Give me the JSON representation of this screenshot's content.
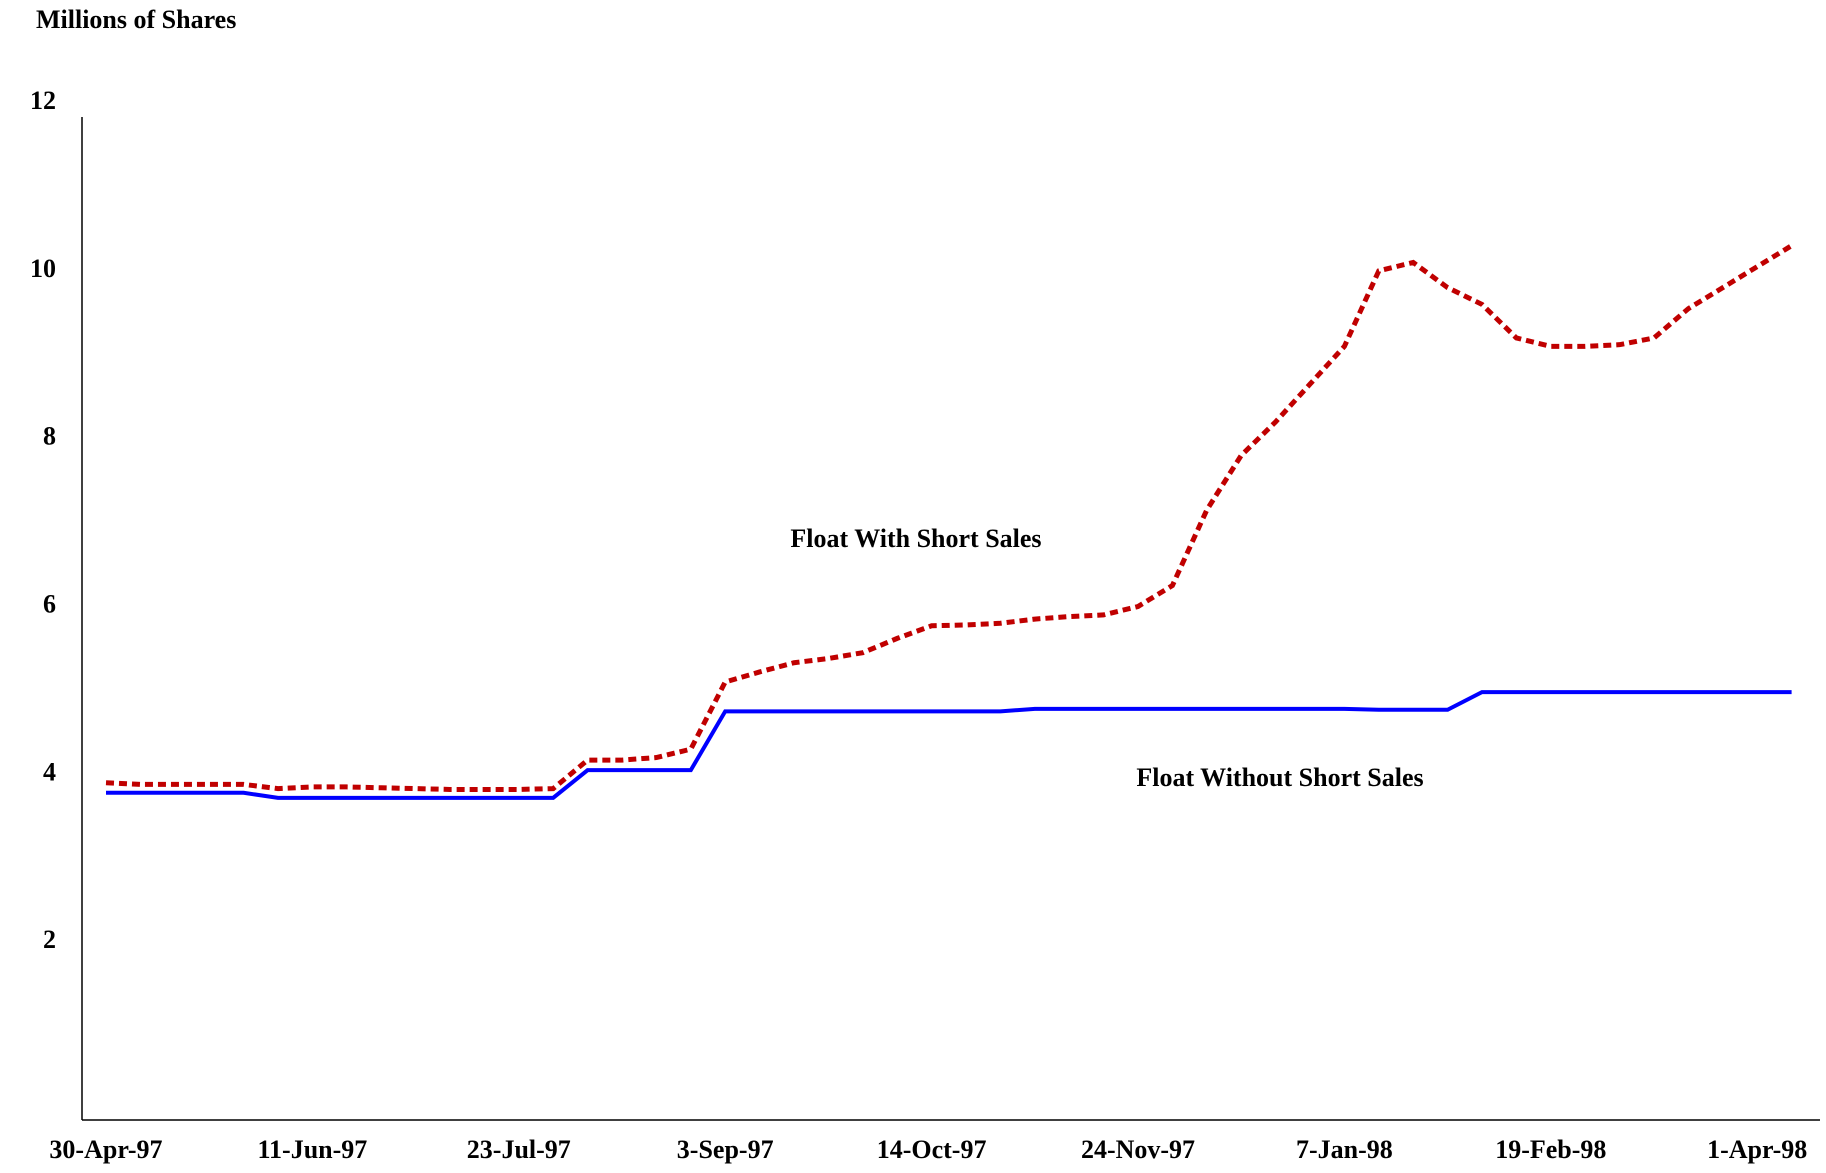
{
  "chart_data": {
    "type": "line",
    "title": "Millions of Shares",
    "categories": [
      "30-Apr-97",
      null,
      null,
      null,
      null,
      null,
      "11-Jun-97",
      null,
      null,
      null,
      null,
      null,
      "23-Jul-97",
      null,
      null,
      null,
      null,
      null,
      "3-Sep-97",
      null,
      null,
      null,
      null,
      null,
      "14-Oct-97",
      null,
      null,
      null,
      null,
      null,
      "24-Nov-97",
      null,
      null,
      null,
      null,
      null,
      "7-Jan-98",
      null,
      null,
      null,
      null,
      null,
      "19-Feb-98",
      null,
      null,
      null,
      null,
      null,
      "1-Apr-98",
      null
    ],
    "series": [
      {
        "name": "Float With Short Sales",
        "color": "#c00000",
        "dash": true,
        "values": [
          3.9,
          3.88,
          3.88,
          3.88,
          3.88,
          3.83,
          3.85,
          3.85,
          3.84,
          3.83,
          3.82,
          3.82,
          3.82,
          3.83,
          4.17,
          4.17,
          4.2,
          4.3,
          5.1,
          5.22,
          5.33,
          5.38,
          5.45,
          5.62,
          5.77,
          5.78,
          5.8,
          5.85,
          5.88,
          5.9,
          6.0,
          6.25,
          7.15,
          7.8,
          8.2,
          8.65,
          9.1,
          10.0,
          10.1,
          9.8,
          9.6,
          9.2,
          9.1,
          9.1,
          9.12,
          9.2,
          9.55,
          9.8,
          10.05,
          10.3
        ]
      },
      {
        "name": "Float Without Short Sales",
        "color": "#0000ff",
        "dash": false,
        "values": [
          3.78,
          3.78,
          3.78,
          3.78,
          3.78,
          3.72,
          3.72,
          3.72,
          3.72,
          3.72,
          3.72,
          3.72,
          3.72,
          3.72,
          4.05,
          4.05,
          4.05,
          4.05,
          4.75,
          4.75,
          4.75,
          4.75,
          4.75,
          4.75,
          4.75,
          4.75,
          4.75,
          4.78,
          4.78,
          4.78,
          4.78,
          4.78,
          4.78,
          4.78,
          4.78,
          4.78,
          4.78,
          4.77,
          4.77,
          4.77,
          4.98,
          4.98,
          4.98,
          4.98,
          4.98,
          4.98,
          4.98,
          4.98,
          4.98,
          4.98
        ]
      }
    ],
    "ylim": [
      0,
      12
    ],
    "yticks": [
      2,
      4,
      6,
      8,
      10,
      12
    ]
  }
}
